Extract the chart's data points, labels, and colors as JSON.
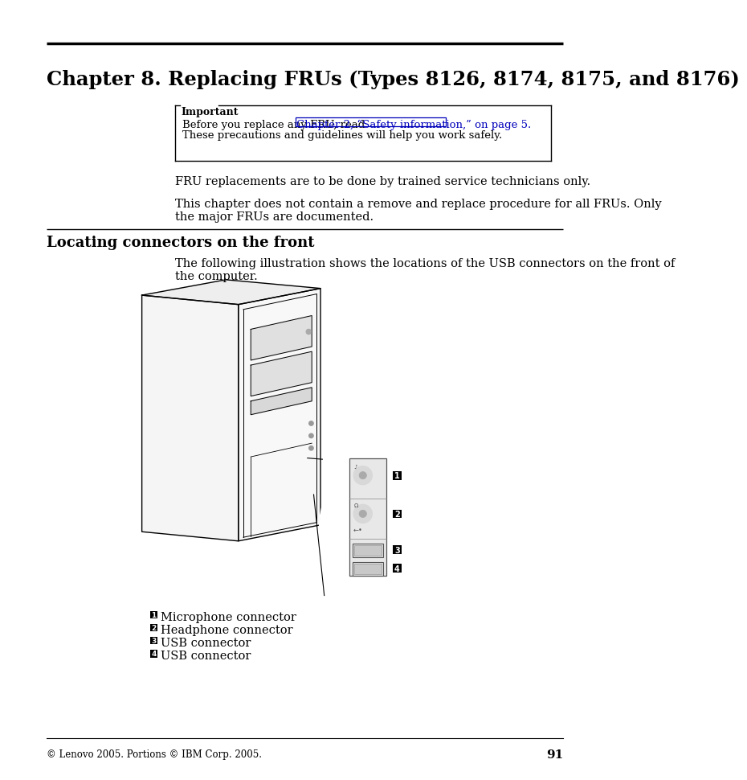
{
  "background_color": "#ffffff",
  "page_number": "91",
  "footer_text": "© Lenovo 2005. Portions © IBM Corp. 2005.",
  "chapter_title": "Chapter 8. Replacing FRUs (Types 8126, 8174, 8175, and 8176)",
  "important_label": "Important",
  "important_box_text_before_link": "Before you replace any FRU, read ",
  "important_link_text": "Chapter 2, “Safety information,” on page 5.",
  "important_box_text2": "These precautions and guidelines will help you work safely.",
  "body_text1": "FRU replacements are to be done by trained service technicians only.",
  "body_text2": "This chapter does not contain a remove and replace procedure for all FRUs. Only\nthe major FRUs are documented.",
  "section_title": "Locating connectors on the front",
  "illustration_caption": "The following illustration shows the locations of the USB connectors on the front of\nthe computer.",
  "legend_items": [
    {
      "num": "1",
      "text": "Microphone connector"
    },
    {
      "num": "2",
      "text": "Headphone connector"
    },
    {
      "num": "3",
      "text": "USB connector"
    },
    {
      "num": "4",
      "text": "USB connector"
    }
  ]
}
